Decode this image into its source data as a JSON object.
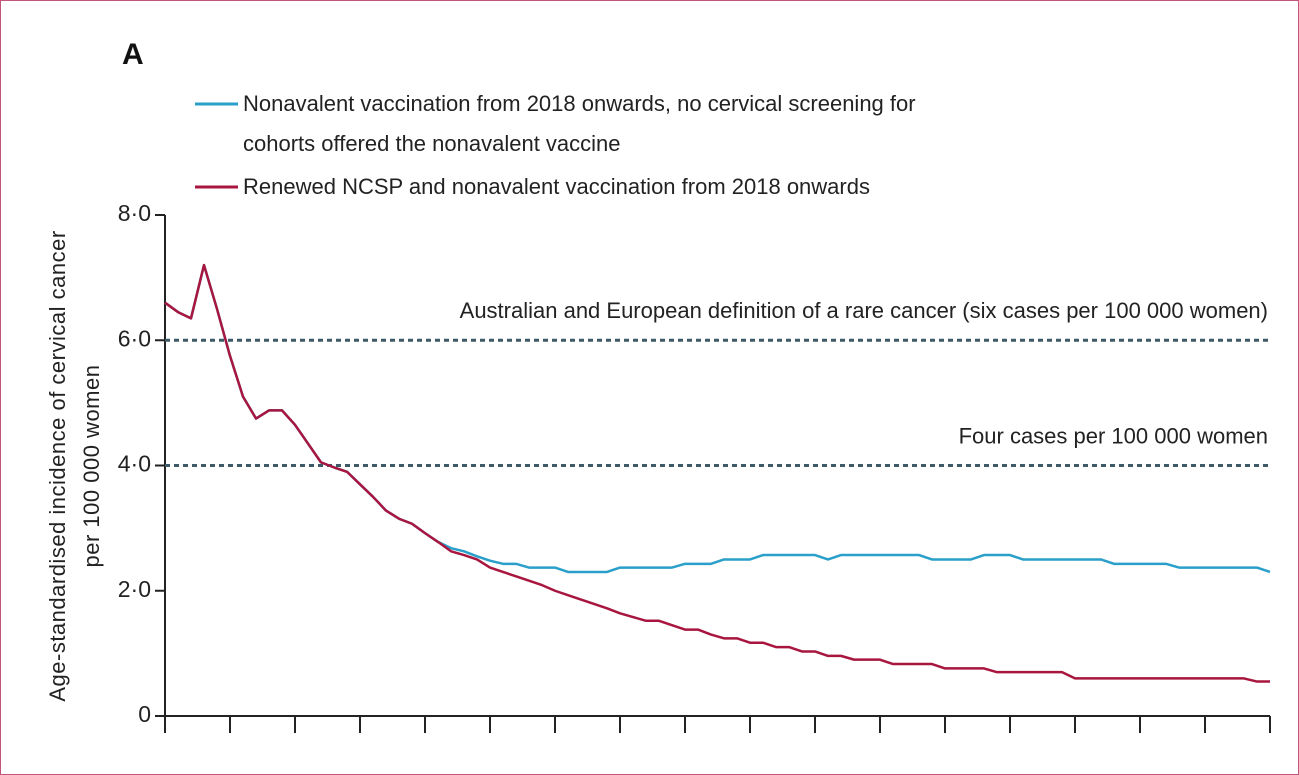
{
  "chart_data": {
    "type": "line",
    "panel_label": "A",
    "y_label": "Age-standardised incidence of cervical cancer per 100 000 women",
    "x": [
      0,
      1,
      2,
      3,
      4,
      5,
      6,
      7,
      8,
      9,
      10,
      11,
      12,
      13,
      14,
      15,
      16,
      17,
      18,
      19,
      20,
      21,
      22,
      23,
      24,
      25,
      26,
      27,
      28,
      29,
      30,
      31,
      32,
      33,
      34,
      35,
      36,
      37,
      38,
      39,
      40,
      41,
      42,
      43,
      44,
      45,
      46,
      47,
      48,
      49,
      50,
      51,
      52,
      53,
      54,
      55,
      56,
      57,
      58,
      59,
      60,
      61,
      62,
      63,
      64,
      65,
      66,
      67,
      68,
      69,
      70,
      71,
      72,
      73,
      74,
      75,
      76,
      77,
      78,
      79,
      80,
      81,
      82,
      83,
      84,
      85
    ],
    "xlim": [
      0,
      85
    ],
    "xticks": [
      0,
      5,
      10,
      15,
      20,
      25,
      30,
      35,
      40,
      45,
      50,
      55,
      60,
      65,
      70,
      75,
      80,
      85
    ],
    "ylim": [
      0,
      8
    ],
    "yticks": [
      {
        "value": 8,
        "label": "8·0"
      },
      {
        "value": 6,
        "label": "6·0"
      },
      {
        "value": 4,
        "label": "4·0"
      },
      {
        "value": 2,
        "label": "2·0"
      },
      0
    ],
    "reference_lines": [
      {
        "value": 6,
        "label": "Australian and European definition of a rare cancer (six cases per 100 000 women)"
      },
      {
        "value": 4,
        "label": "Four cases per 100 000 women"
      }
    ],
    "reference_color": "#3d5a66",
    "series": [
      {
        "name": "Nonavalent vaccination from 2018 onwards, no cervical screening for cohorts offered the nonavalent vaccine",
        "color": "#2a9fc9",
        "values": [
          6.6,
          6.45,
          6.35,
          7.2,
          6.5,
          5.75,
          5.1,
          4.75,
          4.88,
          4.88,
          4.65,
          4.35,
          4.05,
          3.97,
          3.9,
          3.7,
          3.5,
          3.28,
          3.15,
          3.07,
          2.92,
          2.78,
          2.68,
          2.63,
          2.55,
          2.48,
          2.43,
          2.43,
          2.37,
          2.37,
          2.37,
          2.3,
          2.3,
          2.3,
          2.3,
          2.37,
          2.37,
          2.37,
          2.37,
          2.37,
          2.43,
          2.43,
          2.43,
          2.5,
          2.5,
          2.5,
          2.57,
          2.57,
          2.57,
          2.57,
          2.57,
          2.5,
          2.57,
          2.57,
          2.57,
          2.57,
          2.57,
          2.57,
          2.57,
          2.5,
          2.5,
          2.5,
          2.5,
          2.57,
          2.57,
          2.57,
          2.5,
          2.5,
          2.5,
          2.5,
          2.5,
          2.5,
          2.5,
          2.43,
          2.43,
          2.43,
          2.43,
          2.43,
          2.37,
          2.37,
          2.37,
          2.37,
          2.37,
          2.37,
          2.37,
          2.3
        ]
      },
      {
        "name": "Renewed NCSP and nonavalent vaccination from 2018 onwards",
        "color": "#a8163f",
        "values": [
          6.6,
          6.45,
          6.35,
          7.2,
          6.5,
          5.75,
          5.1,
          4.75,
          4.88,
          4.88,
          4.65,
          4.35,
          4.05,
          3.97,
          3.9,
          3.7,
          3.5,
          3.28,
          3.15,
          3.07,
          2.92,
          2.78,
          2.63,
          2.57,
          2.5,
          2.37,
          2.3,
          2.23,
          2.16,
          2.09,
          2.0,
          1.93,
          1.86,
          1.79,
          1.72,
          1.64,
          1.58,
          1.52,
          1.52,
          1.45,
          1.38,
          1.38,
          1.3,
          1.24,
          1.24,
          1.17,
          1.17,
          1.1,
          1.1,
          1.03,
          1.03,
          0.96,
          0.96,
          0.9,
          0.9,
          0.9,
          0.83,
          0.83,
          0.83,
          0.83,
          0.76,
          0.76,
          0.76,
          0.76,
          0.7,
          0.7,
          0.7,
          0.7,
          0.7,
          0.7,
          0.6,
          0.6,
          0.6,
          0.6,
          0.6,
          0.6,
          0.6,
          0.6,
          0.6,
          0.6,
          0.6,
          0.6,
          0.6,
          0.6,
          0.55,
          0.55
        ]
      }
    ]
  }
}
